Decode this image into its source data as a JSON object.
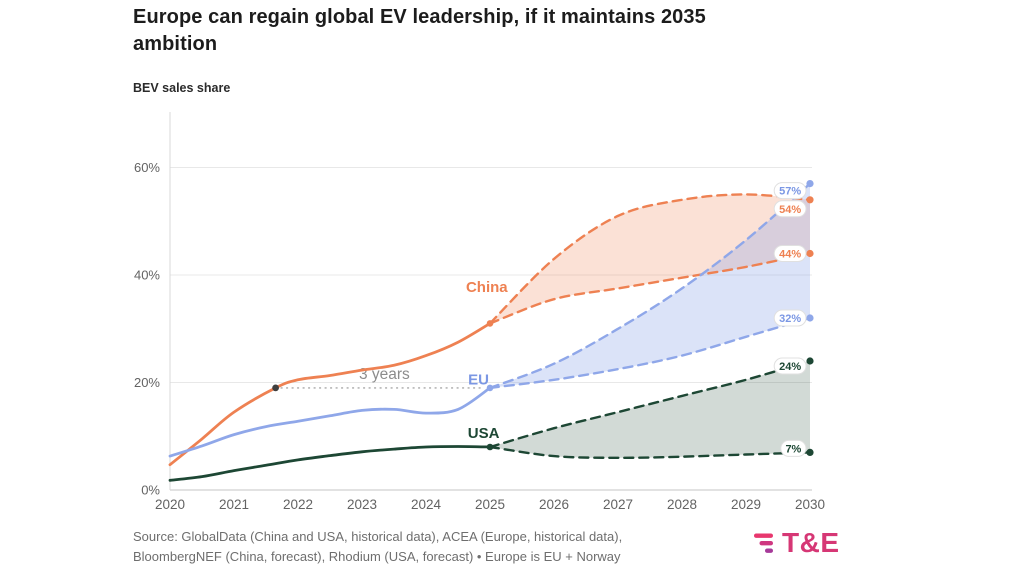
{
  "page": {
    "title": "Europe can regain global EV leadership, if it maintains 2035 ambition",
    "y_axis_title": "BEV sales share",
    "source_line1": "Source: GlobalData (China and USA, historical data), ACEA (Europe, historical data),",
    "source_line2": "BloombergNEF (China, forecast), Rhodium (USA, forecast) • Europe is EU + Norway",
    "logo_text": "T&E",
    "logo_color": "#d63775"
  },
  "chart_data": {
    "type": "line",
    "title": "Europe can regain global EV leadership, if it maintains 2035 ambition",
    "ylabel": "BEV sales share",
    "xlim": [
      2020,
      2030
    ],
    "ylim": [
      0,
      65
    ],
    "grid": "horizontal",
    "x_ticks": [
      "2020",
      "2021",
      "2022",
      "2023",
      "2024",
      "2025",
      "2026",
      "2027",
      "2028",
      "2029",
      "2030"
    ],
    "y_ticks": [
      {
        "value": 0,
        "label": "0%"
      },
      {
        "value": 20,
        "label": "20%"
      },
      {
        "value": 40,
        "label": "40%"
      },
      {
        "value": 60,
        "label": "60%"
      }
    ],
    "annotation": {
      "text": "3 years",
      "value": 19,
      "from_year": 2021.65,
      "to_year": 2025,
      "text_year": 2023.35,
      "dot_color": "#3f3f3f"
    },
    "series": [
      {
        "name": "China",
        "color": "#ee8152",
        "band_fill": "rgba(238,129,82,0.24)",
        "label_year": 2024.95,
        "label_value": 37.8,
        "historical": [
          [
            2020,
            4.7
          ],
          [
            2020.5,
            9.5
          ],
          [
            2021,
            14.5
          ],
          [
            2021.65,
            19
          ],
          [
            2022,
            20.5
          ],
          [
            2022.5,
            21.3
          ],
          [
            2023,
            22.3
          ],
          [
            2023.5,
            23.2
          ],
          [
            2024,
            25
          ],
          [
            2024.5,
            27.5
          ],
          [
            2025,
            31
          ]
        ],
        "forecast_upper": [
          [
            2025,
            31
          ],
          [
            2026,
            43
          ],
          [
            2027,
            51
          ],
          [
            2028,
            54
          ],
          [
            2029,
            55
          ],
          [
            2030,
            54
          ]
        ],
        "forecast_lower": [
          [
            2025,
            31
          ],
          [
            2026,
            35.5
          ],
          [
            2027,
            37.5
          ],
          [
            2028,
            39.5
          ],
          [
            2029,
            41.5
          ],
          [
            2030,
            44
          ]
        ],
        "end_markers": [
          {
            "value": 54,
            "label": "54%",
            "label_dy": 9
          },
          {
            "value": 44,
            "label": "44%",
            "label_dy": 0
          }
        ]
      },
      {
        "name": "EU",
        "color": "#8fa7e9",
        "label_color": "#7b97e4",
        "band_fill": "rgba(143,167,233,0.32)",
        "label_year": 2024.82,
        "label_value": 20.6,
        "historical": [
          [
            2020,
            6.3
          ],
          [
            2020.5,
            8.2
          ],
          [
            2021,
            10.3
          ],
          [
            2021.5,
            11.8
          ],
          [
            2022,
            12.8
          ],
          [
            2022.5,
            13.8
          ],
          [
            2023,
            14.8
          ],
          [
            2023.5,
            15
          ],
          [
            2024,
            14.3
          ],
          [
            2024.5,
            15
          ],
          [
            2025,
            19
          ]
        ],
        "forecast_upper": [
          [
            2025,
            19
          ],
          [
            2026,
            23.5
          ],
          [
            2027,
            30
          ],
          [
            2028,
            37.5
          ],
          [
            2029,
            46.5
          ],
          [
            2030,
            57
          ]
        ],
        "forecast_lower": [
          [
            2025,
            19
          ],
          [
            2026,
            20.5
          ],
          [
            2027,
            22.5
          ],
          [
            2028,
            25
          ],
          [
            2029,
            28.5
          ],
          [
            2030,
            32
          ]
        ],
        "end_markers": [
          {
            "value": 57,
            "label": "57%",
            "label_dy": 7
          },
          {
            "value": 32,
            "label": "32%",
            "label_dy": 0
          }
        ]
      },
      {
        "name": "USA",
        "color": "#1d4734",
        "band_fill": "rgba(29,71,52,0.20)",
        "label_year": 2024.9,
        "label_value": 10.6,
        "historical": [
          [
            2020,
            1.8
          ],
          [
            2020.5,
            2.5
          ],
          [
            2021,
            3.6
          ],
          [
            2021.5,
            4.6
          ],
          [
            2022,
            5.6
          ],
          [
            2022.5,
            6.4
          ],
          [
            2023,
            7.1
          ],
          [
            2023.5,
            7.6
          ],
          [
            2024,
            8
          ],
          [
            2024.5,
            8.1
          ],
          [
            2025,
            8
          ]
        ],
        "forecast_upper": [
          [
            2025,
            8
          ],
          [
            2026,
            11.5
          ],
          [
            2027,
            14.5
          ],
          [
            2028,
            17.5
          ],
          [
            2029,
            20.5
          ],
          [
            2030,
            24
          ]
        ],
        "forecast_lower": [
          [
            2025,
            8
          ],
          [
            2026,
            6.3
          ],
          [
            2027,
            6
          ],
          [
            2028,
            6.2
          ],
          [
            2029,
            6.6
          ],
          [
            2030,
            7
          ]
        ],
        "end_markers": [
          {
            "value": 24,
            "label": "24%",
            "label_dy": 5
          },
          {
            "value": 7,
            "label": "7%",
            "label_dy": -4
          }
        ]
      }
    ]
  }
}
